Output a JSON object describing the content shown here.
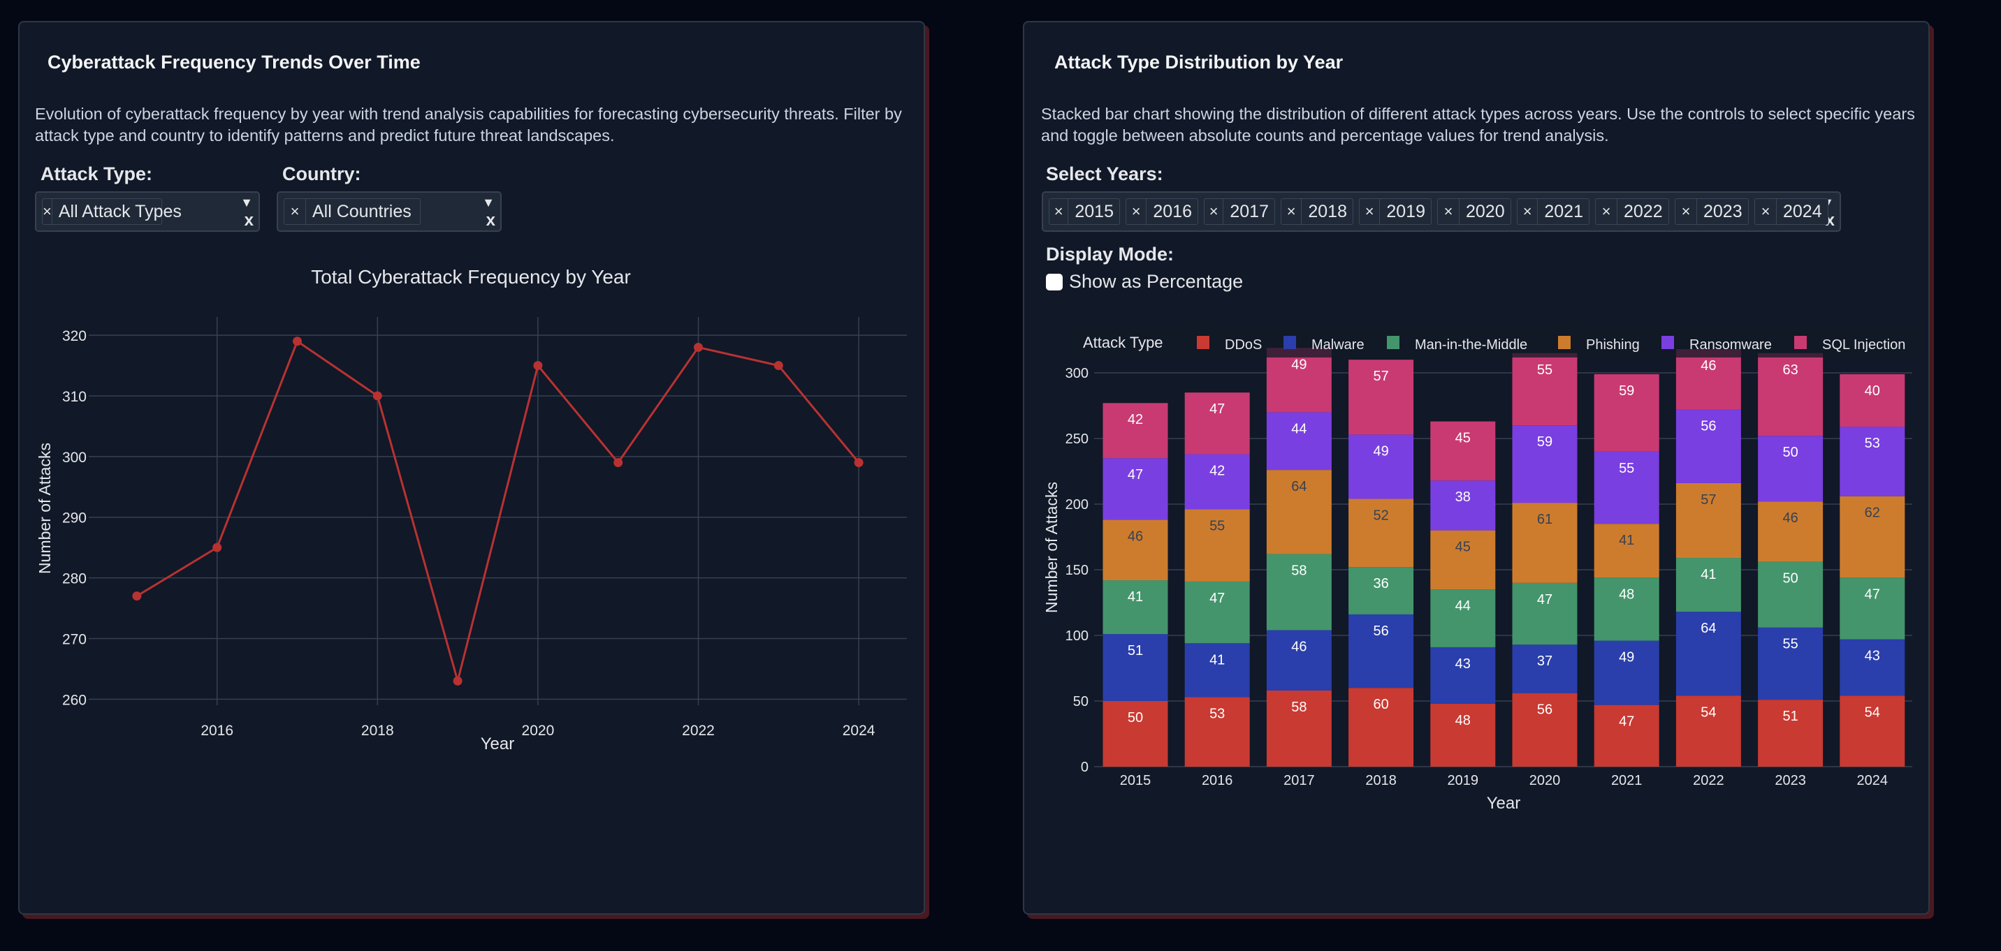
{
  "left_panel": {
    "title": "Cyberattack Frequency Trends Over Time",
    "description": "Evolution of cyberattack frequency by year with trend analysis capabilities for forecasting cybersecurity threats. Filter by attack type and country to identify patterns and predict future threat landscapes.",
    "attack_type_label": "Attack Type:",
    "attack_type_selected": "All Attack Types",
    "country_label": "Country:",
    "country_selected": "All Countries",
    "remove_glyph": "×",
    "clear_glyph": "x",
    "dropdown_glyph": "▼"
  },
  "right_panel": {
    "title": "Attack Type Distribution by Year",
    "description": "Stacked bar chart showing the distribution of different attack types across years. Use the controls to select specific years and toggle between absolute counts and percentage values for trend analysis.",
    "select_years_label": "Select Years:",
    "selected_years": [
      "2015",
      "2016",
      "2017",
      "2018",
      "2019",
      "2020",
      "2021",
      "2022",
      "2023",
      "2024"
    ],
    "display_mode_label": "Display Mode:",
    "show_percentage_label": "Show as Percentage",
    "show_percentage_checked": false
  },
  "chart_data": [
    {
      "type": "line",
      "title": "Total Cyberattack Frequency by Year",
      "xlabel": "Year",
      "ylabel": "Number of Attacks",
      "x": [
        2015,
        2016,
        2017,
        2018,
        2019,
        2020,
        2021,
        2022,
        2023,
        2024
      ],
      "series": [
        {
          "name": "Total",
          "values": [
            277,
            285,
            319,
            310,
            263,
            315,
            299,
            318,
            315,
            299
          ],
          "color": "#b83232"
        }
      ],
      "xticks": [
        "2016",
        "2018",
        "2020",
        "2022",
        "2024"
      ],
      "yticks": [
        "260",
        "270",
        "280",
        "290",
        "300",
        "310",
        "320"
      ],
      "xlim": [
        2014.4,
        2024.6
      ],
      "ylim": [
        259,
        323
      ],
      "grid": true
    },
    {
      "type": "bar",
      "stacked": true,
      "title": "",
      "xlabel": "Year",
      "ylabel": "Number of Attacks",
      "legend_title": "Attack Type",
      "legend_position": "top",
      "categories": [
        "2015",
        "2016",
        "2017",
        "2018",
        "2019",
        "2020",
        "2021",
        "2022",
        "2023",
        "2024"
      ],
      "series": [
        {
          "name": "DDoS",
          "color": "#c93a32",
          "label_color": "#ffffff",
          "values": [
            50,
            53,
            58,
            60,
            48,
            56,
            47,
            54,
            51,
            54
          ]
        },
        {
          "name": "Malware",
          "color": "#2a3fab",
          "label_color": "#ffffff",
          "values": [
            51,
            41,
            46,
            56,
            43,
            37,
            49,
            64,
            55,
            43
          ]
        },
        {
          "name": "Man-in-the-Middle",
          "color": "#44956c",
          "label_color": "#ffffff",
          "values": [
            41,
            47,
            58,
            36,
            44,
            47,
            48,
            41,
            50,
            47
          ]
        },
        {
          "name": "Phishing",
          "color": "#cd7c2e",
          "label_color": "#374151",
          "values": [
            46,
            55,
            64,
            52,
            45,
            61,
            41,
            57,
            46,
            62
          ]
        },
        {
          "name": "Ransomware",
          "color": "#7a3fe0",
          "label_color": "#ffffff",
          "values": [
            47,
            42,
            44,
            49,
            38,
            59,
            55,
            56,
            50,
            53
          ]
        },
        {
          "name": "SQL Injection",
          "color": "#c93a72",
          "label_color": "#ffffff",
          "values": [
            42,
            47,
            49,
            57,
            45,
            55,
            59,
            46,
            63,
            40
          ]
        }
      ],
      "yticks": [
        "0",
        "50",
        "100",
        "150",
        "200",
        "250",
        "300"
      ],
      "ylim": [
        0,
        312
      ],
      "grid": true
    }
  ]
}
